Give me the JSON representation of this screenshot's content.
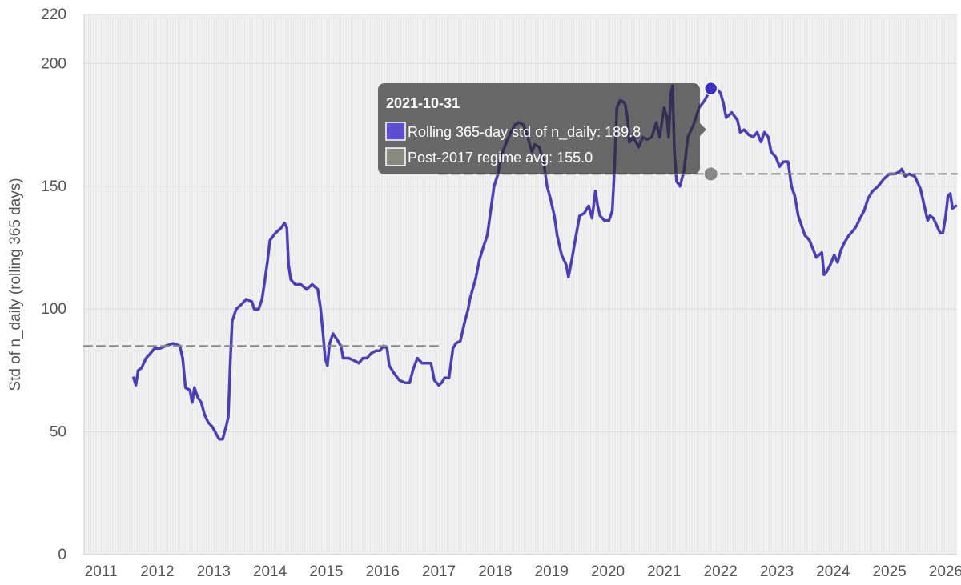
{
  "chart_data": {
    "type": "line",
    "xlabel": "",
    "ylabel": "Std of n_daily (rolling 365 days)",
    "xlim": [
      2010.7,
      2026.2
    ],
    "ylim": [
      0,
      220
    ],
    "x_ticks": [
      "2011",
      "2012",
      "2013",
      "2014",
      "2015",
      "2016",
      "2017",
      "2018",
      "2019",
      "2020",
      "2021",
      "2022",
      "2023",
      "2024",
      "2025",
      "2026"
    ],
    "y_ticks": [
      0,
      50,
      100,
      150,
      200,
      220
    ],
    "grid": true,
    "series": [
      {
        "name": "Rolling 365-day std of n_daily",
        "color": "#4b3fb5",
        "style": "solid",
        "points": [
          [
            2011.58,
            72
          ],
          [
            2011.62,
            69
          ],
          [
            2011.66,
            75
          ],
          [
            2011.72,
            76
          ],
          [
            2011.8,
            80
          ],
          [
            2011.88,
            82
          ],
          [
            2011.95,
            84
          ],
          [
            2012.05,
            84
          ],
          [
            2012.15,
            85
          ],
          [
            2012.28,
            86
          ],
          [
            2012.4,
            85
          ],
          [
            2012.45,
            80
          ],
          [
            2012.5,
            68
          ],
          [
            2012.58,
            67
          ],
          [
            2012.62,
            62
          ],
          [
            2012.66,
            68
          ],
          [
            2012.72,
            64
          ],
          [
            2012.78,
            62
          ],
          [
            2012.84,
            57
          ],
          [
            2012.9,
            54
          ],
          [
            2012.98,
            52
          ],
          [
            2013.05,
            49
          ],
          [
            2013.1,
            47
          ],
          [
            2013.16,
            47
          ],
          [
            2013.22,
            52
          ],
          [
            2013.26,
            56
          ],
          [
            2013.3,
            80
          ],
          [
            2013.33,
            95
          ],
          [
            2013.4,
            100
          ],
          [
            2013.5,
            102
          ],
          [
            2013.58,
            104
          ],
          [
            2013.68,
            103
          ],
          [
            2013.72,
            100
          ],
          [
            2013.8,
            100
          ],
          [
            2013.86,
            104
          ],
          [
            2013.9,
            110
          ],
          [
            2013.96,
            120
          ],
          [
            2014.0,
            128
          ],
          [
            2014.1,
            131
          ],
          [
            2014.2,
            133
          ],
          [
            2014.26,
            135
          ],
          [
            2014.3,
            133
          ],
          [
            2014.33,
            118
          ],
          [
            2014.37,
            112
          ],
          [
            2014.45,
            110
          ],
          [
            2014.55,
            110
          ],
          [
            2014.65,
            108
          ],
          [
            2014.75,
            110
          ],
          [
            2014.85,
            108
          ],
          [
            2014.9,
            100
          ],
          [
            2014.95,
            88
          ],
          [
            2014.98,
            80
          ],
          [
            2015.02,
            77
          ],
          [
            2015.06,
            86
          ],
          [
            2015.12,
            90
          ],
          [
            2015.18,
            88
          ],
          [
            2015.26,
            85
          ],
          [
            2015.3,
            80
          ],
          [
            2015.4,
            80
          ],
          [
            2015.5,
            79
          ],
          [
            2015.58,
            78
          ],
          [
            2015.65,
            80
          ],
          [
            2015.72,
            80
          ],
          [
            2015.8,
            82
          ],
          [
            2015.88,
            83
          ],
          [
            2015.95,
            83
          ],
          [
            2016.02,
            85
          ],
          [
            2016.08,
            84
          ],
          [
            2016.12,
            77
          ],
          [
            2016.2,
            74
          ],
          [
            2016.3,
            71
          ],
          [
            2016.4,
            70
          ],
          [
            2016.48,
            70
          ],
          [
            2016.55,
            76
          ],
          [
            2016.62,
            80
          ],
          [
            2016.7,
            78
          ],
          [
            2016.78,
            78
          ],
          [
            2016.86,
            78
          ],
          [
            2016.92,
            71
          ],
          [
            2017.0,
            69
          ],
          [
            2017.05,
            70
          ],
          [
            2017.1,
            72
          ],
          [
            2017.18,
            72
          ],
          [
            2017.25,
            84
          ],
          [
            2017.3,
            86
          ],
          [
            2017.38,
            87
          ],
          [
            2017.45,
            94
          ],
          [
            2017.52,
            100
          ],
          [
            2017.55,
            104
          ],
          [
            2017.6,
            108
          ],
          [
            2017.65,
            112
          ],
          [
            2017.72,
            120
          ],
          [
            2017.8,
            126
          ],
          [
            2017.86,
            130
          ],
          [
            2017.92,
            140
          ],
          [
            2017.98,
            150
          ],
          [
            2018.05,
            155
          ],
          [
            2018.1,
            162
          ],
          [
            2018.2,
            168
          ],
          [
            2018.28,
            172
          ],
          [
            2018.35,
            175
          ],
          [
            2018.42,
            176
          ],
          [
            2018.5,
            175
          ],
          [
            2018.58,
            170
          ],
          [
            2018.65,
            164
          ],
          [
            2018.7,
            167
          ],
          [
            2018.78,
            166
          ],
          [
            2018.86,
            160
          ],
          [
            2018.92,
            150
          ],
          [
            2018.98,
            145
          ],
          [
            2019.05,
            138
          ],
          [
            2019.1,
            130
          ],
          [
            2019.18,
            122
          ],
          [
            2019.26,
            118
          ],
          [
            2019.3,
            113
          ],
          [
            2019.36,
            120
          ],
          [
            2019.42,
            128
          ],
          [
            2019.5,
            138
          ],
          [
            2019.58,
            139
          ],
          [
            2019.66,
            142
          ],
          [
            2019.72,
            137
          ],
          [
            2019.78,
            148
          ],
          [
            2019.82,
            142
          ],
          [
            2019.86,
            138
          ],
          [
            2019.94,
            136
          ],
          [
            2020.02,
            136
          ],
          [
            2020.08,
            140
          ],
          [
            2020.12,
            158
          ],
          [
            2020.16,
            182
          ],
          [
            2020.22,
            185
          ],
          [
            2020.3,
            184
          ],
          [
            2020.35,
            178
          ],
          [
            2020.38,
            168
          ],
          [
            2020.45,
            170
          ],
          [
            2020.55,
            166
          ],
          [
            2020.62,
            170
          ],
          [
            2020.7,
            169
          ],
          [
            2020.78,
            170
          ],
          [
            2020.86,
            176
          ],
          [
            2020.92,
            170
          ],
          [
            2021.0,
            182
          ],
          [
            2021.05,
            178
          ],
          [
            2021.08,
            170
          ],
          [
            2021.12,
            188
          ],
          [
            2021.15,
            191
          ],
          [
            2021.18,
            165
          ],
          [
            2021.22,
            152
          ],
          [
            2021.28,
            150
          ],
          [
            2021.35,
            156
          ],
          [
            2021.42,
            170
          ],
          [
            2021.52,
            175
          ],
          [
            2021.62,
            182
          ],
          [
            2021.72,
            185
          ],
          [
            2021.83,
            189.8
          ],
          [
            2021.92,
            190
          ],
          [
            2022.0,
            188
          ],
          [
            2022.05,
            184
          ],
          [
            2022.1,
            178
          ],
          [
            2022.2,
            180
          ],
          [
            2022.3,
            177
          ],
          [
            2022.35,
            172
          ],
          [
            2022.42,
            173
          ],
          [
            2022.5,
            171
          ],
          [
            2022.58,
            170
          ],
          [
            2022.65,
            172
          ],
          [
            2022.72,
            168
          ],
          [
            2022.78,
            172
          ],
          [
            2022.85,
            170
          ],
          [
            2022.9,
            164
          ],
          [
            2022.98,
            162
          ],
          [
            2023.05,
            158
          ],
          [
            2023.12,
            160
          ],
          [
            2023.2,
            160
          ],
          [
            2023.26,
            150
          ],
          [
            2023.32,
            146
          ],
          [
            2023.38,
            138
          ],
          [
            2023.44,
            134
          ],
          [
            2023.5,
            130
          ],
          [
            2023.58,
            128
          ],
          [
            2023.65,
            124
          ],
          [
            2023.7,
            121
          ],
          [
            2023.75,
            122
          ],
          [
            2023.8,
            123
          ],
          [
            2023.84,
            114
          ],
          [
            2023.88,
            115
          ],
          [
            2023.95,
            118
          ],
          [
            2024.02,
            122
          ],
          [
            2024.08,
            119
          ],
          [
            2024.14,
            124
          ],
          [
            2024.2,
            127
          ],
          [
            2024.28,
            130
          ],
          [
            2024.36,
            132
          ],
          [
            2024.42,
            134
          ],
          [
            2024.48,
            137
          ],
          [
            2024.55,
            140
          ],
          [
            2024.62,
            145
          ],
          [
            2024.7,
            148
          ],
          [
            2024.8,
            150
          ],
          [
            2024.9,
            153
          ],
          [
            2025.0,
            155
          ],
          [
            2025.1,
            155
          ],
          [
            2025.18,
            156
          ],
          [
            2025.22,
            157
          ],
          [
            2025.28,
            154
          ],
          [
            2025.35,
            155
          ],
          [
            2025.45,
            154
          ],
          [
            2025.55,
            149
          ],
          [
            2025.62,
            142
          ],
          [
            2025.68,
            136
          ],
          [
            2025.72,
            138
          ],
          [
            2025.78,
            137
          ],
          [
            2025.84,
            134
          ],
          [
            2025.9,
            131
          ],
          [
            2025.95,
            131
          ],
          [
            2026.0,
            138
          ],
          [
            2026.04,
            146
          ],
          [
            2026.08,
            147
          ],
          [
            2026.12,
            141
          ],
          [
            2026.18,
            142
          ]
        ]
      },
      {
        "name": "Post-2017 regime avg",
        "color": "#888888",
        "style": "dashed",
        "points": [
          [
            2017.0,
            155.0
          ],
          [
            2026.2,
            155.0
          ]
        ]
      },
      {
        "style": "dashed",
        "color": "#888888",
        "points": [
          [
            2010.7,
            85.0
          ],
          [
            2017.0,
            85.0
          ]
        ]
      }
    ],
    "tooltip": {
      "date": "2021-10-31",
      "x": 2021.83,
      "entries": [
        {
          "label": "Rolling 365-day std of n_daily: 189.8",
          "color": "#5b4fd0",
          "y": 189.8
        },
        {
          "label": "Post-2017 regime avg: 155.0",
          "color": "#8a8a80",
          "y": 155.0
        }
      ]
    }
  }
}
